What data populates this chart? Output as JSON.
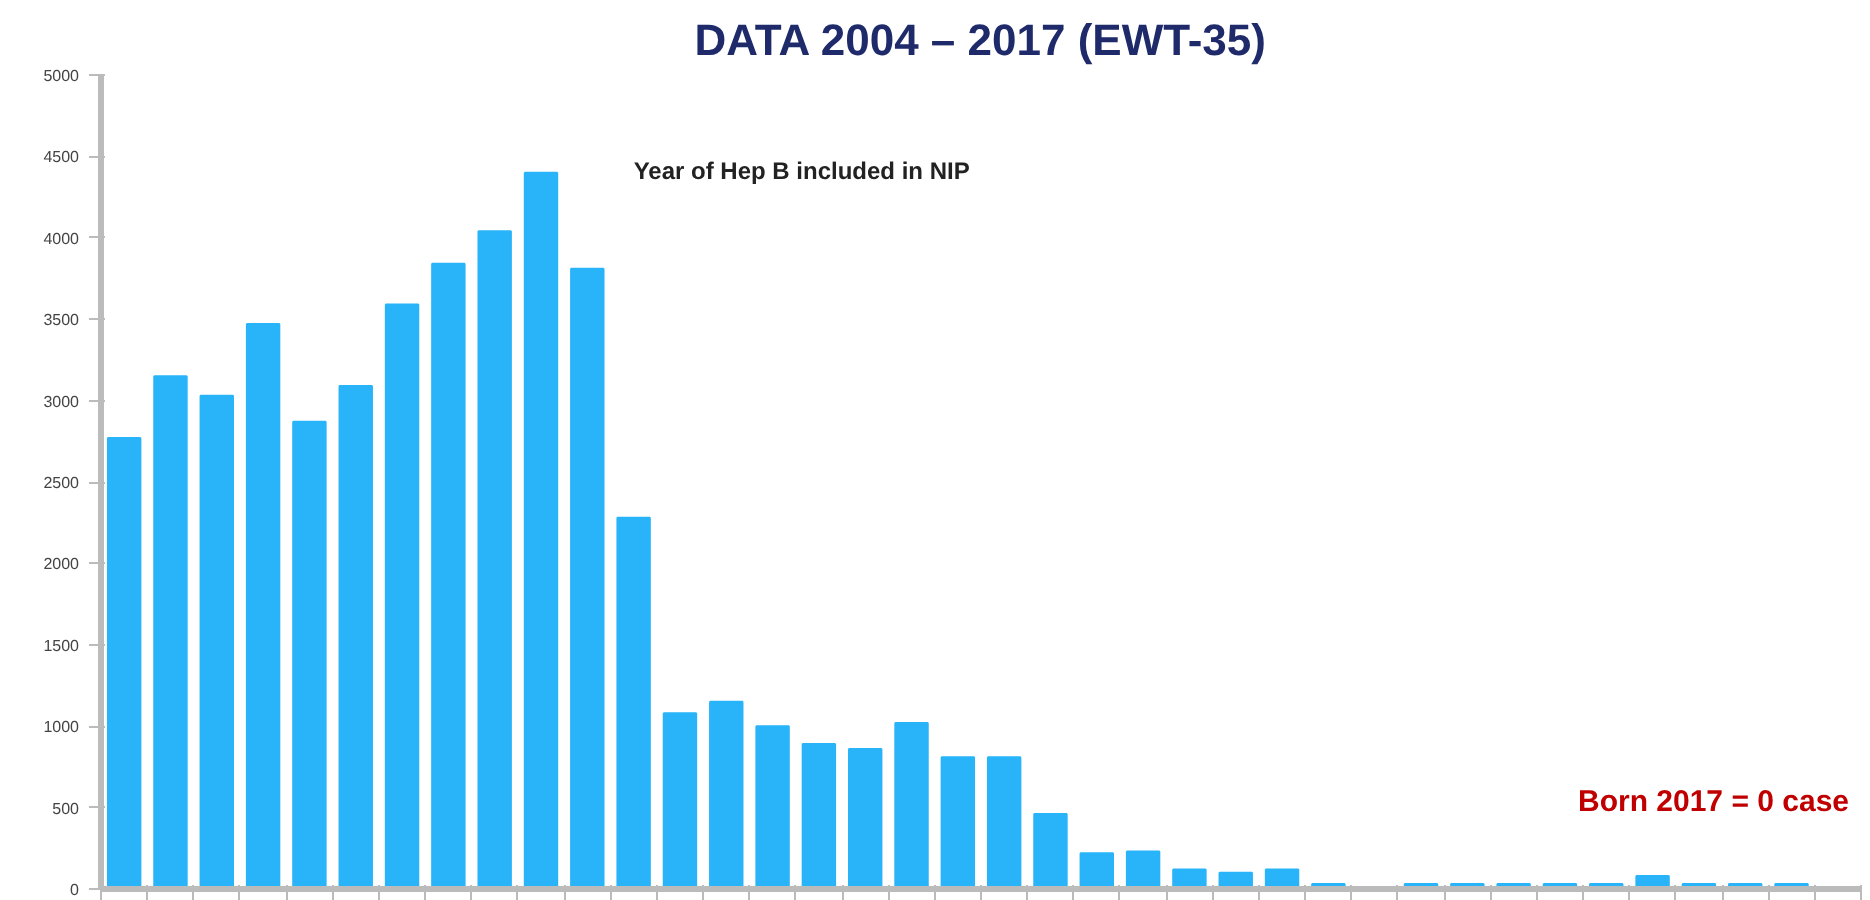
{
  "chart_data": {
    "type": "bar",
    "title": "DATA 2004 – 2017 (EWT-35)",
    "categories": [
      null,
      null,
      null,
      null,
      null,
      null,
      null,
      null,
      null,
      null,
      null,
      null,
      null,
      null,
      null,
      null,
      null,
      null,
      null,
      null,
      null,
      null,
      null,
      null,
      null,
      null,
      null,
      null,
      null,
      null,
      null,
      null,
      null,
      null,
      null,
      null,
      null,
      null
    ],
    "series": [
      {
        "color": "#29b4fa",
        "values": [
          2770,
          3150,
          3030,
          3470,
          2870,
          3090,
          3590,
          3840,
          4040,
          4400,
          3810,
          2280,
          1080,
          1150,
          1000,
          890,
          860,
          1020,
          810,
          810,
          460,
          220,
          230,
          120,
          100,
          120,
          30,
          0,
          30,
          30,
          30,
          30,
          30,
          80,
          30,
          30,
          30,
          0
        ]
      }
    ],
    "ylim": [
      0,
      5000
    ],
    "yticks": [
      0,
      500,
      1000,
      1500,
      2000,
      2500,
      3000,
      3500,
      4000,
      4500,
      5000
    ],
    "annotations": [
      "Year of Hep B included in NIP",
      "Born 2017 = 0 case"
    ],
    "grid": false,
    "tick_labels": "y"
  }
}
